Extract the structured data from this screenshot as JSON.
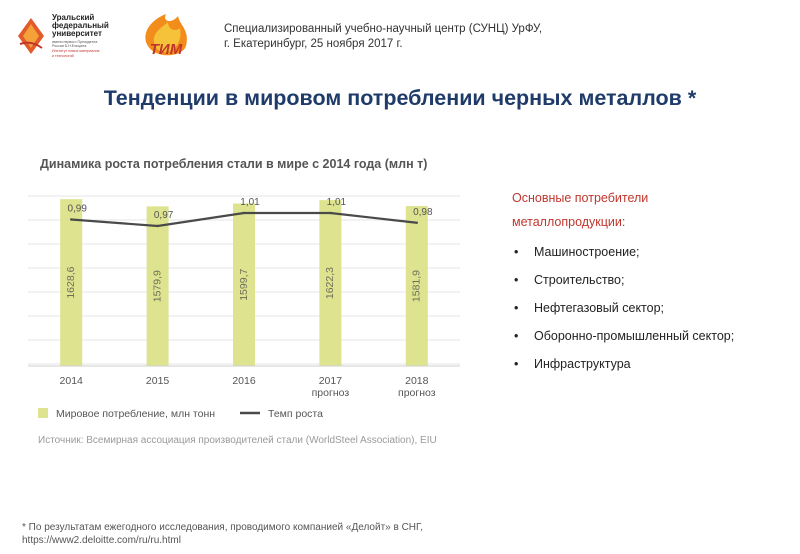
{
  "header": {
    "logo_urfu": {
      "name_lines": [
        "Уральский",
        "федеральный",
        "университет"
      ],
      "small_lines": [
        "имени первого Президента",
        "России Б.Н.Ельцина"
      ],
      "red_lines": [
        "Институт новых материалов",
        "и технологий"
      ]
    },
    "logo_tim": {
      "text": "ТИМ"
    },
    "center_line1": "Специализированный учебно-научный центр (СУНЦ) УрФУ,",
    "center_line2": "г. Екатеринбург, 25 ноября 2017 г."
  },
  "title": "Тенденции в мировом потреблении черных металлов *",
  "chart_data": {
    "type": "bar",
    "title": "Динамика роста потребления стали в мире с 2014 года (млн т)",
    "categories": [
      [
        "2014"
      ],
      [
        "2015"
      ],
      [
        "2016"
      ],
      [
        "2017",
        "прогноз"
      ],
      [
        "2018",
        "прогноз"
      ]
    ],
    "series": [
      {
        "name": "Мировое потребление, млн тонн",
        "type": "bar",
        "values": [
          1628.6,
          1579.9,
          1599.7,
          1622.3,
          1581.9
        ],
        "labels": [
          "1628,6",
          "1579,9",
          "1599,7",
          "1622,3",
          "1581,9"
        ]
      },
      {
        "name": "Темп роста",
        "type": "line",
        "values": [
          0.99,
          0.97,
          1.01,
          1.01,
          0.98
        ],
        "labels": [
          "0,99",
          "0,97",
          "1,01",
          "1,01",
          "0,98"
        ]
      }
    ],
    "grid": true,
    "legend": "bottom-left",
    "source": "Источник: Всемирная ассоциация производителей стали (WorldSteel Association), EIU",
    "colors": {
      "bar": "#dde38f",
      "line": "#4a4a4a",
      "grid": "#e5e5e5",
      "title": "#555555"
    }
  },
  "consumers": {
    "title_line1": "Основные потребители",
    "title_line2": "металлопродукции:",
    "items": [
      "Машиностроение;",
      "Строительство;",
      "Нефтегазовый сектор;",
      "Оборонно-промышленный сектор;",
      "Инфраструктура"
    ]
  },
  "footnote": {
    "line1": "* По результатам ежегодного исследования, проводимого компанией «Делойт» в СНГ,",
    "line2": "https://www2.deloitte.com/ru/ru.html"
  }
}
